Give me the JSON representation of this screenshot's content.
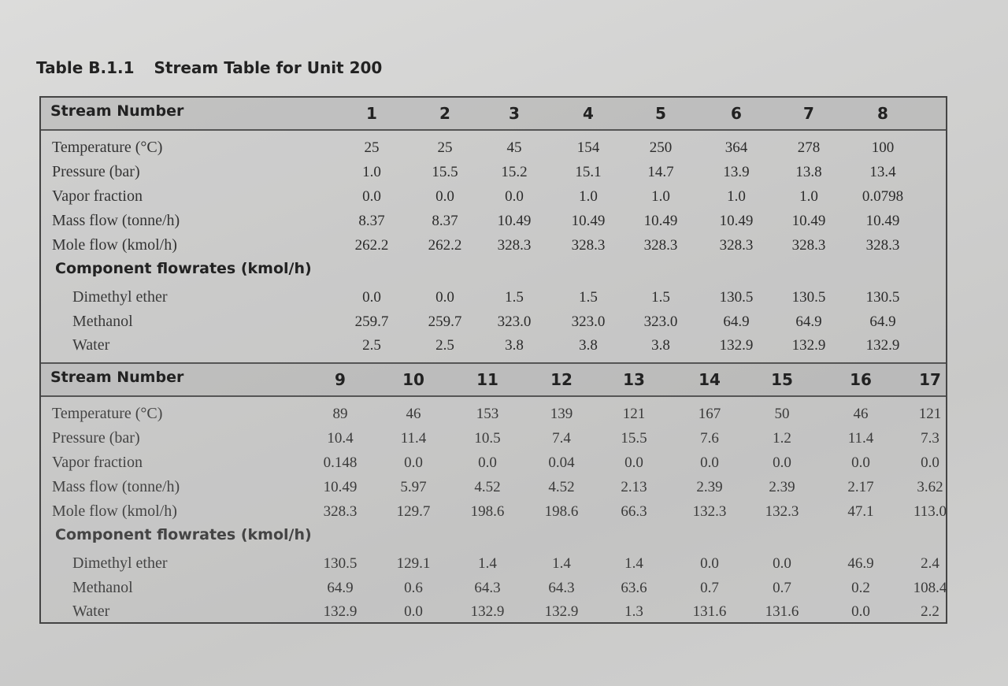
{
  "caption": {
    "number": "Table B.1.1",
    "title": "Stream Table for Unit 200"
  },
  "sections": [
    {
      "header_label": "Stream Number",
      "streams": [
        "1",
        "2",
        "3",
        "4",
        "5",
        "6",
        "7",
        "8"
      ],
      "rows": [
        {
          "label": "Temperature (°C)",
          "kind": "main",
          "values": [
            "25",
            "25",
            "45",
            "154",
            "250",
            "364",
            "278",
            "100"
          ]
        },
        {
          "label": "Pressure (bar)",
          "kind": "main",
          "values": [
            "1.0",
            "15.5",
            "15.2",
            "15.1",
            "14.7",
            "13.9",
            "13.8",
            "13.4"
          ]
        },
        {
          "label": "Vapor fraction",
          "kind": "main",
          "values": [
            "0.0",
            "0.0",
            "0.0",
            "1.0",
            "1.0",
            "1.0",
            "1.0",
            "0.0798"
          ]
        },
        {
          "label": "Mass flow (tonne/h)",
          "kind": "main",
          "values": [
            "8.37",
            "8.37",
            "10.49",
            "10.49",
            "10.49",
            "10.49",
            "10.49",
            "10.49"
          ]
        },
        {
          "label": "Mole flow (kmol/h)",
          "kind": "main",
          "values": [
            "262.2",
            "262.2",
            "328.3",
            "328.3",
            "328.3",
            "328.3",
            "328.3",
            "328.3"
          ]
        },
        {
          "label": "Component flowrates (kmol/h)",
          "kind": "group",
          "values": []
        },
        {
          "label": "Dimethyl ether",
          "kind": "sub",
          "values": [
            "0.0",
            "0.0",
            "1.5",
            "1.5",
            "1.5",
            "130.5",
            "130.5",
            "130.5"
          ]
        },
        {
          "label": "Methanol",
          "kind": "sub",
          "values": [
            "259.7",
            "259.7",
            "323.0",
            "323.0",
            "323.0",
            "64.9",
            "64.9",
            "64.9"
          ]
        },
        {
          "label": "Water",
          "kind": "sub",
          "values": [
            "2.5",
            "2.5",
            "3.8",
            "3.8",
            "3.8",
            "132.9",
            "132.9",
            "132.9"
          ]
        }
      ]
    },
    {
      "header_label": "Stream Number",
      "streams": [
        "9",
        "10",
        "11",
        "12",
        "13",
        "14",
        "15",
        "16",
        "17"
      ],
      "rows": [
        {
          "label": "Temperature (°C)",
          "kind": "main",
          "values": [
            "89",
            "46",
            "153",
            "139",
            "121",
            "167",
            "50",
            "46",
            "121"
          ]
        },
        {
          "label": "Pressure (bar)",
          "kind": "main",
          "values": [
            "10.4",
            "11.4",
            "10.5",
            "7.4",
            "15.5",
            "7.6",
            "1.2",
            "11.4",
            "7.3"
          ]
        },
        {
          "label": "Vapor fraction",
          "kind": "main",
          "values": [
            "0.148",
            "0.0",
            "0.0",
            "0.04",
            "0.0",
            "0.0",
            "0.0",
            "0.0",
            "0.0"
          ]
        },
        {
          "label": "Mass flow (tonne/h)",
          "kind": "main",
          "values": [
            "10.49",
            "5.97",
            "4.52",
            "4.52",
            "2.13",
            "2.39",
            "2.39",
            "2.17",
            "3.62"
          ]
        },
        {
          "label": "Mole flow (kmol/h)",
          "kind": "main",
          "values": [
            "328.3",
            "129.7",
            "198.6",
            "198.6",
            "66.3",
            "132.3",
            "132.3",
            "47.1",
            "113.0"
          ]
        },
        {
          "label": "Component flowrates (kmol/h)",
          "kind": "group",
          "values": []
        },
        {
          "label": "Dimethyl ether",
          "kind": "sub",
          "values": [
            "130.5",
            "129.1",
            "1.4",
            "1.4",
            "1.4",
            "0.0",
            "0.0",
            "46.9",
            "2.4"
          ]
        },
        {
          "label": "Methanol",
          "kind": "sub",
          "values": [
            "64.9",
            "0.6",
            "64.3",
            "64.3",
            "63.6",
            "0.7",
            "0.7",
            "0.2",
            "108.4"
          ]
        },
        {
          "label": "Water",
          "kind": "sub",
          "values": [
            "132.9",
            "0.0",
            "132.9",
            "132.9",
            "1.3",
            "131.6",
            "131.6",
            "0.0",
            "2.2"
          ]
        }
      ]
    }
  ]
}
